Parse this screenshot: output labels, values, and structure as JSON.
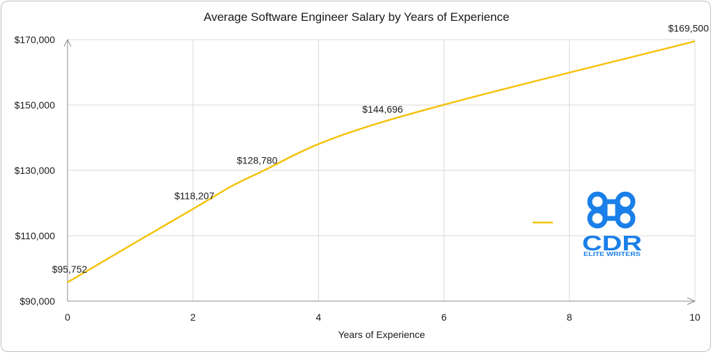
{
  "chart_data": {
    "type": "line",
    "title": "Average Software Engineer Salary by Years of Experience",
    "xlabel": "Years of Experience",
    "ylabel": "",
    "xlim": [
      0,
      10
    ],
    "ylim": [
      90000,
      170000
    ],
    "x_ticks": [
      0,
      2,
      4,
      6,
      8,
      10
    ],
    "y_ticks": [
      90000,
      110000,
      130000,
      150000,
      170000
    ],
    "y_tick_labels": [
      "$90,000",
      "$110,000",
      "$130,000",
      "$150,000",
      "$170,000"
    ],
    "grid": true,
    "series": [
      {
        "color": "#f5c20b",
        "x": [
          0,
          2,
          3,
          5,
          10
        ],
        "y": [
          95752,
          118207,
          128780,
          144696,
          169500
        ],
        "data_labels": [
          "$95,752",
          "$118,207",
          "$128,780",
          "$144,696",
          "$169,500"
        ]
      }
    ]
  },
  "logo": {
    "text": "CDR",
    "subtext": "ELITE WRITERS",
    "color": "#1a7fe8",
    "icon": "cdr-logo-icon"
  }
}
